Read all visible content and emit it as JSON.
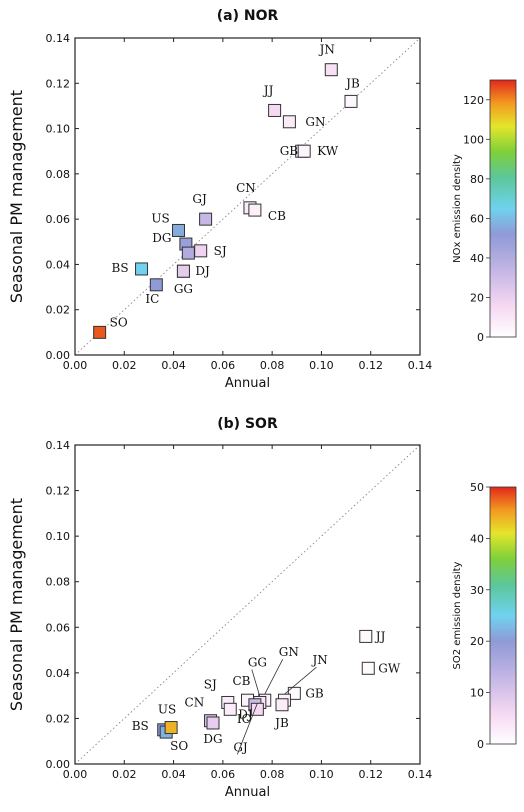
{
  "chart_data": [
    {
      "type": "scatter",
      "title": "(a) NOR",
      "xlabel": "Annual",
      "ylabel": "Seasonal PM management",
      "xlim": [
        0.0,
        0.14
      ],
      "ylim": [
        0.0,
        0.14
      ],
      "xticks": [
        "0.00",
        "0.02",
        "0.04",
        "0.06",
        "0.08",
        "0.10",
        "0.12",
        "0.14"
      ],
      "yticks": [
        "0.00",
        "0.02",
        "0.04",
        "0.06",
        "0.08",
        "0.10",
        "0.12",
        "0.14"
      ],
      "reference_line": "1:1 dotted",
      "colorbar": {
        "label": "NOx emission density",
        "min": 0,
        "max": 130,
        "ticks": [
          "0",
          "20",
          "40",
          "60",
          "80",
          "100",
          "120"
        ]
      },
      "points": [
        {
          "label": "JN",
          "x": 0.104,
          "y": 0.126,
          "density": 12
        },
        {
          "label": "JB",
          "x": 0.112,
          "y": 0.112,
          "density": 3
        },
        {
          "label": "JJ",
          "x": 0.081,
          "y": 0.108,
          "density": 15
        },
        {
          "label": "GN",
          "x": 0.087,
          "y": 0.103,
          "density": 8
        },
        {
          "label": "GB",
          "x": 0.092,
          "y": 0.09,
          "density": 2
        },
        {
          "label": "KW",
          "x": 0.093,
          "y": 0.09,
          "density": 4
        },
        {
          "label": "CN",
          "x": 0.071,
          "y": 0.065,
          "density": 8
        },
        {
          "label": "CB",
          "x": 0.073,
          "y": 0.064,
          "density": 6
        },
        {
          "label": "GJ",
          "x": 0.053,
          "y": 0.06,
          "density": 33
        },
        {
          "label": "US",
          "x": 0.042,
          "y": 0.055,
          "density": 56
        },
        {
          "label": "DG",
          "x": 0.045,
          "y": 0.049,
          "density": 48
        },
        {
          "label": "SJ",
          "x": 0.051,
          "y": 0.046,
          "density": 18
        },
        {
          "label": "DG",
          "x": 0.046,
          "y": 0.045,
          "density": 40
        },
        {
          "label": "DJ",
          "x": 0.044,
          "y": 0.037,
          "density": 22
        },
        {
          "label": "BS",
          "x": 0.027,
          "y": 0.038,
          "density": 65
        },
        {
          "label": "IC",
          "x": 0.033,
          "y": 0.031,
          "density": 52
        },
        {
          "label": "GG",
          "x": 0.044,
          "y": 0.037,
          "density": 22
        },
        {
          "label": "SO",
          "x": 0.01,
          "y": 0.01,
          "density": 125
        }
      ]
    },
    {
      "type": "scatter",
      "title": "(b) SOR",
      "xlabel": "Annual",
      "ylabel": "Seasonal PM management",
      "xlim": [
        0.0,
        0.14
      ],
      "ylim": [
        0.0,
        0.14
      ],
      "xticks": [
        "0.00",
        "0.02",
        "0.04",
        "0.06",
        "0.08",
        "0.10",
        "0.12",
        "0.14"
      ],
      "yticks": [
        "0.00",
        "0.02",
        "0.04",
        "0.06",
        "0.08",
        "0.10",
        "0.12",
        "0.14"
      ],
      "reference_line": "1:1 dotted",
      "colorbar": {
        "label": "SO2 emission density",
        "min": 0,
        "max": 50,
        "ticks": [
          "0",
          "10",
          "20",
          "30",
          "40",
          "50"
        ]
      },
      "points": [
        {
          "label": "JJ",
          "x": 0.118,
          "y": 0.056,
          "density": 1
        },
        {
          "label": "GW",
          "x": 0.119,
          "y": 0.042,
          "density": 1
        },
        {
          "label": "GB",
          "x": 0.089,
          "y": 0.031,
          "density": 1
        },
        {
          "label": "JN",
          "x": 0.085,
          "y": 0.028,
          "density": 2
        },
        {
          "label": "GN",
          "x": 0.077,
          "y": 0.028,
          "density": 2
        },
        {
          "label": "GG",
          "x": 0.075,
          "y": 0.027,
          "density": 4
        },
        {
          "label": "CB",
          "x": 0.07,
          "y": 0.028,
          "density": 2
        },
        {
          "label": "SJ",
          "x": 0.062,
          "y": 0.027,
          "density": 3
        },
        {
          "label": "IC",
          "x": 0.073,
          "y": 0.026,
          "density": 12
        },
        {
          "label": "JB",
          "x": 0.084,
          "y": 0.026,
          "density": 3
        },
        {
          "label": "GJ",
          "x": 0.074,
          "y": 0.024,
          "density": 6
        },
        {
          "label": "DJ",
          "x": 0.063,
          "y": 0.024,
          "density": 3
        },
        {
          "label": "CN",
          "x": 0.055,
          "y": 0.019,
          "density": 10
        },
        {
          "label": "DG",
          "x": 0.056,
          "y": 0.018,
          "density": 8
        },
        {
          "label": "BS",
          "x": 0.036,
          "y": 0.015,
          "density": 20
        },
        {
          "label": "SO",
          "x": 0.037,
          "y": 0.014,
          "density": 22
        },
        {
          "label": "US",
          "x": 0.039,
          "y": 0.016,
          "density": 44
        }
      ]
    }
  ]
}
